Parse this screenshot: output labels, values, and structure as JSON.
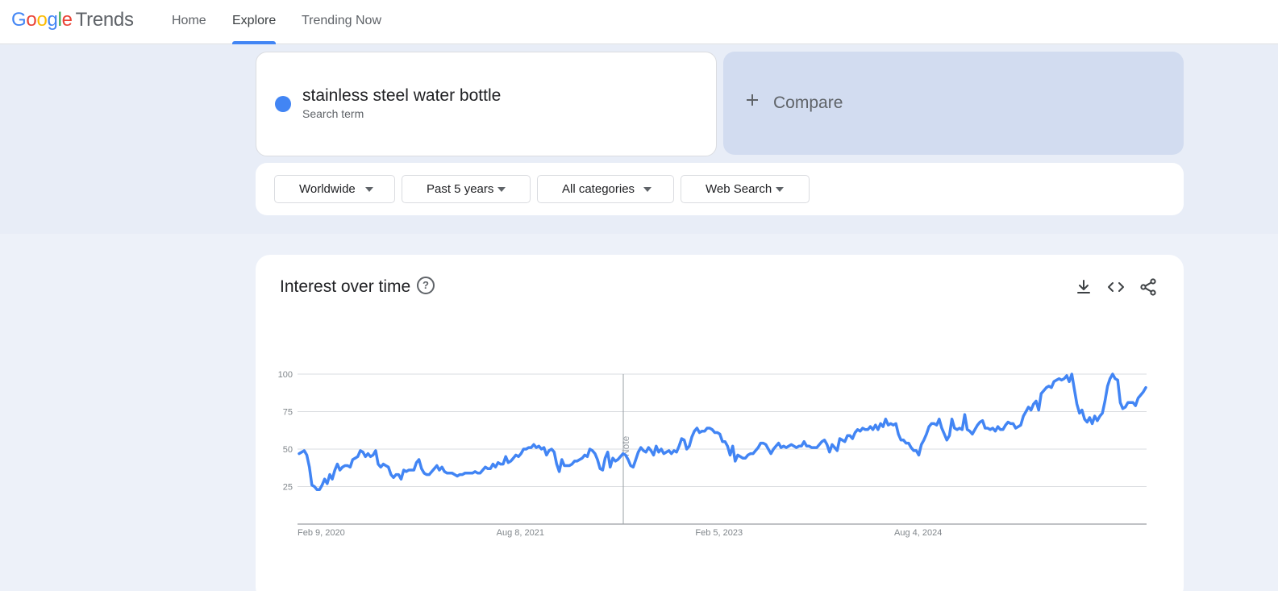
{
  "header": {
    "logo": {
      "google": [
        "G",
        "o",
        "o",
        "g",
        "l",
        "e"
      ],
      "product": "Trends"
    },
    "nav": [
      {
        "label": "Home"
      },
      {
        "label": "Explore"
      },
      {
        "label": "Trending Now"
      }
    ]
  },
  "search": {
    "term": "stainless steel water bottle",
    "term_type": "Search term",
    "term_color": "#4285f4",
    "compare_label": "Compare"
  },
  "filters": {
    "region": "Worldwide",
    "time": "Past 5 years",
    "category": "All categories",
    "property": "Web Search"
  },
  "chart_section": {
    "title": "Interest over time",
    "note_label": "Note"
  },
  "chart_data": {
    "type": "line",
    "title": "Interest over time",
    "xlabel": "",
    "ylabel": "",
    "ylim": [
      0,
      100
    ],
    "y_ticks": [
      25,
      50,
      75,
      100
    ],
    "x_tick_labels": [
      "Feb 9, 2020",
      "Aug 8, 2021",
      "Feb 5, 2023",
      "Aug 4, 2024"
    ],
    "grid": true,
    "series": [
      {
        "color": "#4285f4",
        "values": [
          47,
          48,
          49,
          46,
          38,
          26,
          25,
          23,
          23,
          26,
          30,
          27,
          33,
          30,
          36,
          40,
          36,
          38,
          39,
          39,
          38,
          43,
          44,
          45,
          49,
          48,
          45,
          47,
          45,
          46,
          49,
          40,
          38,
          40,
          39,
          38,
          33,
          31,
          33,
          33,
          30,
          36,
          35,
          36,
          36,
          36,
          41,
          43,
          37,
          34,
          33,
          33,
          35,
          37,
          39,
          36,
          38,
          35,
          34,
          34,
          34,
          33,
          32,
          33,
          33,
          34,
          34,
          34,
          34,
          35,
          34,
          34,
          36,
          38,
          37,
          37,
          40,
          38,
          41,
          40,
          40,
          45,
          41,
          42,
          44,
          46,
          45,
          47,
          50,
          50,
          51,
          51,
          53,
          51,
          52,
          50,
          51,
          46,
          49,
          50,
          48,
          40,
          35,
          43,
          39,
          39,
          39,
          40,
          42,
          42,
          43,
          44,
          46,
          45,
          50,
          49,
          47,
          43,
          37,
          36,
          44,
          48,
          38,
          44,
          42,
          43,
          45,
          47,
          46,
          43,
          39,
          38,
          43,
          48,
          51,
          49,
          48,
          51,
          49,
          46,
          52,
          48,
          50,
          47,
          48,
          49,
          47,
          49,
          48,
          52,
          57,
          56,
          50,
          52,
          58,
          62,
          64,
          61,
          62,
          62,
          64,
          64,
          63,
          61,
          61,
          60,
          55,
          55,
          52,
          46,
          52,
          42,
          46,
          45,
          44,
          44,
          46,
          47,
          47,
          49,
          51,
          54,
          54,
          53,
          50,
          47,
          50,
          52,
          54,
          51,
          52,
          51,
          52,
          53,
          52,
          51,
          52,
          52,
          55,
          52,
          52,
          51,
          51,
          51,
          53,
          55,
          56,
          53,
          48,
          53,
          51,
          49,
          57,
          56,
          55,
          59,
          59,
          57,
          61,
          63,
          62,
          64,
          63,
          63,
          65,
          63,
          66,
          63,
          67,
          65,
          70,
          66,
          67,
          66,
          67,
          60,
          56,
          56,
          54,
          54,
          51,
          49,
          49,
          46,
          53,
          56,
          60,
          65,
          67,
          67,
          66,
          70,
          64,
          60,
          56,
          59,
          70,
          64,
          63,
          64,
          63,
          73,
          63,
          62,
          60,
          63,
          66,
          68,
          69,
          64,
          64,
          63,
          64,
          62,
          65,
          63,
          63,
          66,
          68,
          67,
          67,
          64,
          65,
          66,
          72,
          75,
          78,
          76,
          80,
          82,
          76,
          87,
          89,
          91,
          92,
          91,
          95,
          96,
          97,
          96,
          97,
          99,
          95,
          100,
          90,
          80,
          74,
          76,
          70,
          68,
          71,
          67,
          72,
          69,
          72,
          74,
          82,
          92,
          97,
          100,
          97,
          96,
          81,
          77,
          78,
          81,
          81,
          81,
          79,
          84,
          86,
          88,
          91
        ]
      }
    ]
  }
}
